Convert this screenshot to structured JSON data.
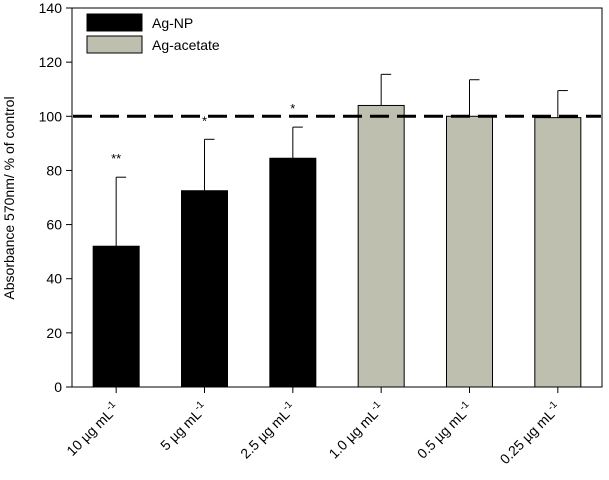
{
  "chart_data": {
    "type": "bar",
    "title": "",
    "xlabel": "",
    "ylabel": "Absorbance 570nm/ % of control",
    "ylim": [
      0,
      140
    ],
    "yticks": [
      0,
      20,
      40,
      60,
      80,
      100,
      120,
      140
    ],
    "grid": false,
    "legend_position": "top-left",
    "reference_line": {
      "value": 100,
      "style": "dashed"
    },
    "categories": [
      {
        "main": "10 µg mL",
        "sup": "-1"
      },
      {
        "main": "5 µg mL",
        "sup": "-1"
      },
      {
        "main": "2.5 µg mL",
        "sup": "-1"
      },
      {
        "main": "1.0 µg mL",
        "sup": "-1"
      },
      {
        "main": "0.5 µg mL",
        "sup": "-1"
      },
      {
        "main": "0.25 µg mL",
        "sup": "-1"
      }
    ],
    "values": [
      52,
      72.5,
      84.5,
      104,
      100,
      99.5
    ],
    "errors": [
      25.5,
      19,
      11.5,
      11.5,
      13.5,
      10
    ],
    "annotations": [
      "**",
      "*",
      "*",
      "",
      "",
      ""
    ],
    "group_of_bar": [
      0,
      0,
      0,
      1,
      1,
      1
    ],
    "series": [
      {
        "name": "Ag-NP",
        "color": "#000000"
      },
      {
        "name": "Ag-acetate",
        "color": "#bfbfb0"
      }
    ]
  }
}
